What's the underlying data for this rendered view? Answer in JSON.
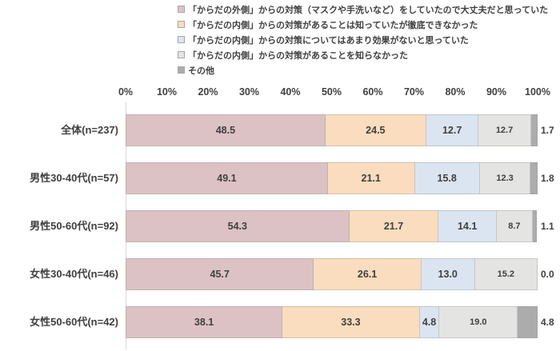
{
  "chart_data": {
    "type": "bar",
    "orientation": "horizontal",
    "stacked": true,
    "unit": "%",
    "title": "",
    "xlabel": "",
    "ylabel": "",
    "xlim": [
      0,
      100
    ],
    "grid": false,
    "legend_position": "top",
    "x_ticks": [
      "0%",
      "10%",
      "20%",
      "30%",
      "40%",
      "50%",
      "60%",
      "70%",
      "80%",
      "90%",
      "100%"
    ],
    "categories": [
      "全体(n=237)",
      "男性30-40代(n=57)",
      "男性50-60代(n=92)",
      "女性30-40代(n=46)",
      "女性50-60代(n=42)"
    ],
    "series": [
      {
        "name": "「からだの外側」からの対策（マスクや手洗いなど）をしていたので大丈夫だと思っていた",
        "color": "#DCC2C5",
        "values": [
          48.5,
          49.1,
          54.3,
          45.7,
          38.1
        ]
      },
      {
        "name": "「からだの内側」からの対策があることは知っていたが徹底できなかった",
        "color": "#FADDBE",
        "values": [
          24.5,
          21.1,
          21.7,
          26.1,
          33.3
        ]
      },
      {
        "name": "「からだの内側」からの対策についてはあまり効果がないと思っていた",
        "color": "#DBE5F1",
        "values": [
          12.7,
          15.8,
          14.1,
          13.0,
          4.8
        ]
      },
      {
        "name": "「からだの内側」からの対策があることを知らなかった",
        "color": "#E4E4E2",
        "values": [
          12.7,
          12.3,
          8.7,
          15.2,
          19.0
        ]
      },
      {
        "name": "その他",
        "color": "#ADACAC",
        "values": [
          1.7,
          1.8,
          1.1,
          0.0,
          4.8
        ]
      }
    ],
    "labels_last_series_outside": true,
    "value_decimals": 1,
    "text_color": "#3F3F3F",
    "axis_line_color": "#D9D9D9"
  }
}
